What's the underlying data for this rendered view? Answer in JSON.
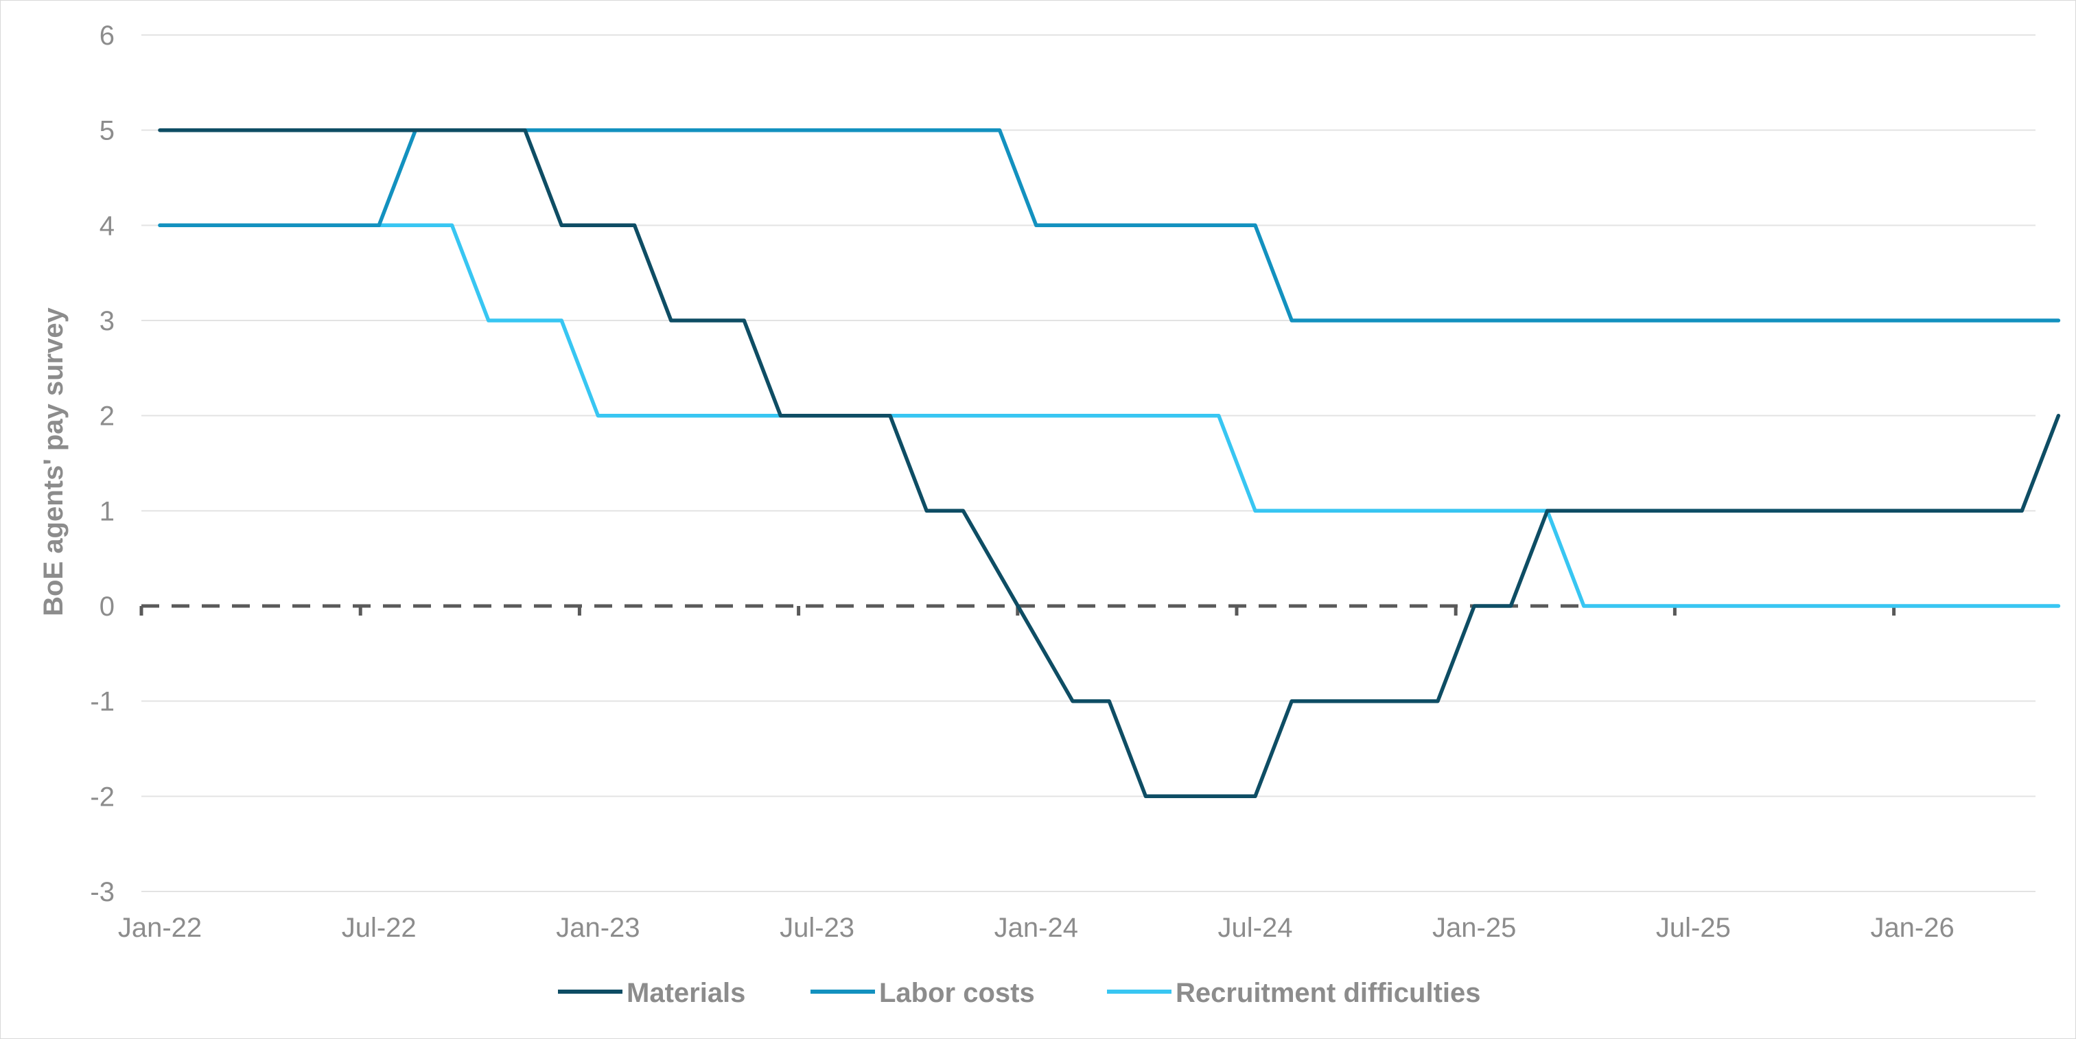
{
  "chart_data": {
    "type": "line",
    "ylabel": "BoE agents' pay survey",
    "xlabel": "",
    "ylim": [
      -3,
      6
    ],
    "yticks": [
      -3,
      -2,
      -1,
      0,
      1,
      2,
      3,
      4,
      5,
      6
    ],
    "xlim": [
      "2022-01",
      "2026-05"
    ],
    "xticks": [
      "Jan-22",
      "Jul-22",
      "Jan-23",
      "Jul-23",
      "Jan-24",
      "Jul-24",
      "Jan-25",
      "Jul-25",
      "Jan-26"
    ],
    "grid": true,
    "zero_line": "dashed",
    "legend_position": "bottom",
    "series": [
      {
        "name": "Materials",
        "color": "#0e4d64",
        "points": [
          [
            "2022-01",
            5
          ],
          [
            "2022-11",
            5
          ],
          [
            "2022-12",
            4
          ],
          [
            "2023-02",
            4
          ],
          [
            "2023-03",
            3
          ],
          [
            "2023-05",
            3
          ],
          [
            "2023-06",
            2
          ],
          [
            "2023-09",
            2
          ],
          [
            "2023-10",
            1
          ],
          [
            "2023-11",
            1
          ],
          [
            "2024-02",
            -1
          ],
          [
            "2024-03",
            -1
          ],
          [
            "2024-04",
            -2
          ],
          [
            "2024-07",
            -2
          ],
          [
            "2024-08",
            -1
          ],
          [
            "2024-12",
            -1
          ],
          [
            "2025-01",
            0
          ],
          [
            "2025-02",
            0
          ],
          [
            "2025-03",
            1
          ],
          [
            "2026-04",
            1
          ],
          [
            "2026-05",
            2
          ]
        ]
      },
      {
        "name": "Labor costs",
        "color": "#1391bf",
        "points": [
          [
            "2022-01",
            4
          ],
          [
            "2022-07",
            4
          ],
          [
            "2022-08",
            5
          ],
          [
            "2023-12",
            5
          ],
          [
            "2024-01",
            4
          ],
          [
            "2024-07",
            4
          ],
          [
            "2024-08",
            3
          ],
          [
            "2026-05",
            3
          ]
        ]
      },
      {
        "name": "Recruitment difficulties",
        "color": "#38c6f2",
        "points": [
          [
            "2022-01",
            4
          ],
          [
            "2022-09",
            4
          ],
          [
            "2022-10",
            3
          ],
          [
            "2022-12",
            3
          ],
          [
            "2023-01",
            2
          ],
          [
            "2024-06",
            2
          ],
          [
            "2024-07",
            1
          ],
          [
            "2025-03",
            1
          ],
          [
            "2025-04",
            0
          ],
          [
            "2026-05",
            0
          ]
        ]
      }
    ]
  }
}
